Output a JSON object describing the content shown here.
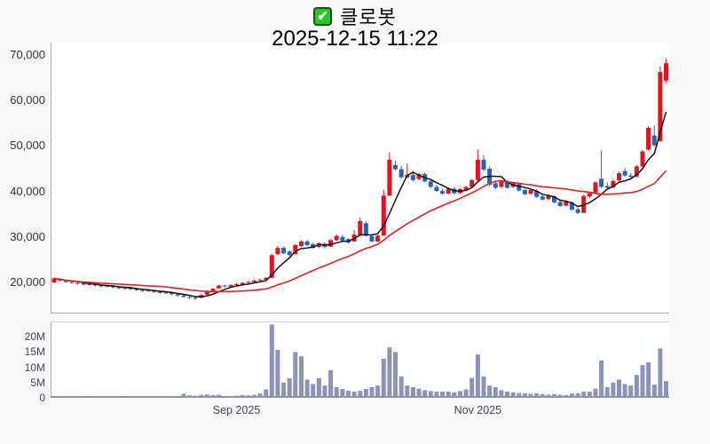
{
  "title": {
    "check_glyph": "✔",
    "symbol": "클로봇",
    "datetime": "2025-12-15 11:22"
  },
  "price_axis": {
    "ticks": [
      {
        "label": "70,000",
        "value": 70000
      },
      {
        "label": "60,000",
        "value": 60000
      },
      {
        "label": "50,000",
        "value": 50000
      },
      {
        "label": "40,000",
        "value": 40000
      },
      {
        "label": "30,000",
        "value": 30000
      },
      {
        "label": "20,000",
        "value": 20000
      }
    ]
  },
  "volume_axis": {
    "ticks": [
      {
        "label": "20M",
        "value": 20
      },
      {
        "label": "15M",
        "value": 15
      },
      {
        "label": "10M",
        "value": 10
      },
      {
        "label": "5M",
        "value": 5
      },
      {
        "label": "0",
        "value": 0
      }
    ]
  },
  "x_axis": {
    "labels": [
      {
        "label": "Sep 2025",
        "day_index": 31
      },
      {
        "label": "Nov 2025",
        "day_index": 72
      }
    ]
  },
  "chart_data": {
    "type": "candlestick",
    "symbol": "클로봇",
    "as_of": "2025-12-15 11:22",
    "price_axis_range": [
      13000,
      72500
    ],
    "volume_axis_range_millions": [
      0,
      25
    ],
    "grid": false,
    "colors": {
      "up": "#dd1522",
      "down": "#2b62b8",
      "volume": "#8b94b8",
      "ma_short": "#000000",
      "ma_long": "#e51f1f"
    },
    "ma_lines": [
      {
        "name": "ma-short",
        "window": 5,
        "color_key": "ma_short",
        "width": 1.4
      },
      {
        "name": "ma-long",
        "window": 20,
        "color_key": "ma_long",
        "width": 1.6
      }
    ],
    "candles_format": [
      "open",
      "high",
      "low",
      "close",
      "volume_millions"
    ],
    "candles": [
      [
        20000,
        21100,
        19800,
        20900,
        0.5
      ],
      [
        20800,
        21000,
        20200,
        20400,
        0.4
      ],
      [
        20400,
        20600,
        19900,
        20100,
        0.3
      ],
      [
        20100,
        20300,
        19700,
        19900,
        0.3
      ],
      [
        19900,
        20100,
        19500,
        19700,
        0.3
      ],
      [
        19800,
        19900,
        19300,
        19500,
        0.4
      ],
      [
        19500,
        19800,
        19300,
        19600,
        0.3
      ],
      [
        19600,
        19700,
        19100,
        19300,
        0.3
      ],
      [
        19300,
        19500,
        18900,
        19100,
        0.4
      ],
      [
        19100,
        19400,
        19000,
        19200,
        0.3
      ],
      [
        19200,
        19300,
        18700,
        18900,
        0.4
      ],
      [
        18900,
        19000,
        18500,
        18700,
        0.3
      ],
      [
        18700,
        18900,
        18500,
        18800,
        0.3
      ],
      [
        18800,
        18900,
        18300,
        18500,
        0.4
      ],
      [
        18500,
        18600,
        18100,
        18300,
        0.3
      ],
      [
        18300,
        18500,
        17900,
        18100,
        0.5
      ],
      [
        18100,
        18400,
        18000,
        18200,
        0.3
      ],
      [
        18200,
        18300,
        17700,
        17900,
        0.4
      ],
      [
        17900,
        18000,
        17500,
        17700,
        0.4
      ],
      [
        17700,
        17900,
        17500,
        17800,
        0.3
      ],
      [
        17800,
        17900,
        17200,
        17400,
        0.5
      ],
      [
        17400,
        17600,
        16900,
        17100,
        0.6
      ],
      [
        17100,
        17300,
        16600,
        16800,
        1.3
      ],
      [
        16800,
        17000,
        16400,
        16600,
        0.8
      ],
      [
        16600,
        16800,
        16200,
        16500,
        0.7
      ],
      [
        16600,
        17400,
        16500,
        17200,
        1.0
      ],
      [
        17300,
        18300,
        17200,
        18100,
        1.1
      ],
      [
        18100,
        18800,
        17900,
        18600,
        0.9
      ],
      [
        18700,
        19500,
        18600,
        19300,
        1.0
      ],
      [
        19300,
        19500,
        18900,
        19100,
        0.6
      ],
      [
        19100,
        19600,
        19000,
        19400,
        0.6
      ],
      [
        19400,
        19800,
        19300,
        19600,
        0.7
      ],
      [
        19600,
        20100,
        19500,
        19900,
        0.9
      ],
      [
        19900,
        20300,
        19800,
        20100,
        0.8
      ],
      [
        20100,
        20600,
        20000,
        20400,
        1.0
      ],
      [
        20400,
        20800,
        20200,
        20600,
        1.4
      ],
      [
        20600,
        21200,
        20500,
        21000,
        2.8
      ],
      [
        21000,
        26300,
        20900,
        26000,
        24.0
      ],
      [
        26200,
        28000,
        26000,
        27600,
        15.7
      ],
      [
        27600,
        27900,
        26200,
        26400,
        5.0
      ],
      [
        26800,
        27100,
        25800,
        26000,
        6.4
      ],
      [
        26200,
        28400,
        26100,
        28200,
        15.0
      ],
      [
        28000,
        29300,
        27800,
        29000,
        13.6
      ],
      [
        29000,
        29400,
        28000,
        28200,
        6.0
      ],
      [
        28400,
        28700,
        27400,
        27600,
        4.5
      ],
      [
        27800,
        28800,
        27600,
        28600,
        6.4
      ],
      [
        28500,
        28800,
        27500,
        27800,
        4.0
      ],
      [
        27900,
        29500,
        27800,
        29300,
        9.0
      ],
      [
        29300,
        30500,
        29100,
        30200,
        3.5
      ],
      [
        30000,
        30400,
        29000,
        29200,
        2.9
      ],
      [
        29500,
        29700,
        28600,
        28800,
        2.3
      ],
      [
        29000,
        31500,
        28900,
        30500,
        2.0
      ],
      [
        30500,
        34300,
        30200,
        33500,
        2.3
      ],
      [
        33000,
        33400,
        30100,
        30300,
        2.9
      ],
      [
        30200,
        30600,
        28800,
        29000,
        3.5
      ],
      [
        29000,
        30500,
        28900,
        30300,
        4.0
      ],
      [
        30300,
        40400,
        30200,
        39100,
        12.8
      ],
      [
        39100,
        48600,
        38900,
        47000,
        16.5
      ],
      [
        45800,
        46800,
        44600,
        44900,
        15.0
      ],
      [
        44900,
        45600,
        42800,
        43100,
        7.0
      ],
      [
        43100,
        46200,
        42900,
        43600,
        4.0
      ],
      [
        43600,
        44600,
        42200,
        42500,
        3.5
      ],
      [
        42700,
        44000,
        42500,
        43800,
        3.0
      ],
      [
        43800,
        44100,
        42000,
        42200,
        2.5
      ],
      [
        42200,
        42600,
        40800,
        41000,
        2.2
      ],
      [
        41000,
        41500,
        39900,
        40100,
        2.0
      ],
      [
        40100,
        40600,
        39300,
        39500,
        2.0
      ],
      [
        39500,
        40900,
        39400,
        40600,
        2.0
      ],
      [
        40600,
        40900,
        39400,
        39600,
        1.8
      ],
      [
        39700,
        40700,
        39500,
        40500,
        2.2
      ],
      [
        40300,
        41200,
        40100,
        41000,
        2.8
      ],
      [
        41000,
        42700,
        40900,
        42500,
        6.5
      ],
      [
        42500,
        49200,
        42300,
        47000,
        14.2
      ],
      [
        47000,
        48000,
        44500,
        44800,
        7.0
      ],
      [
        45000,
        45500,
        41200,
        41500,
        4.0
      ],
      [
        41800,
        42300,
        40500,
        40800,
        3.5
      ],
      [
        41000,
        42500,
        40800,
        42200,
        2.5
      ],
      [
        42100,
        42400,
        40600,
        40800,
        2.0
      ],
      [
        41000,
        42000,
        40800,
        41800,
        1.8
      ],
      [
        41600,
        41900,
        40000,
        40200,
        1.6
      ],
      [
        40300,
        40600,
        39200,
        39400,
        1.5
      ],
      [
        39500,
        40500,
        39300,
        40300,
        1.3
      ],
      [
        40100,
        40400,
        38600,
        38800,
        1.5
      ],
      [
        38900,
        39200,
        38000,
        38200,
        1.2
      ],
      [
        38300,
        39200,
        38100,
        39000,
        1.0
      ],
      [
        38900,
        39100,
        37400,
        37600,
        1.2
      ],
      [
        37700,
        38000,
        36600,
        36800,
        1.0
      ],
      [
        36900,
        38000,
        36700,
        37800,
        0.9
      ],
      [
        37600,
        37800,
        35800,
        36000,
        1.4
      ],
      [
        36100,
        36500,
        35100,
        35300,
        1.5
      ],
      [
        35300,
        39300,
        35200,
        39000,
        2.0
      ],
      [
        38900,
        40000,
        38500,
        39600,
        2.0
      ],
      [
        39600,
        42200,
        39400,
        42000,
        3.0
      ],
      [
        42800,
        49000,
        40800,
        41000,
        12.2
      ],
      [
        41200,
        42000,
        40500,
        40800,
        3.5
      ],
      [
        40900,
        42600,
        40700,
        42300,
        5.0
      ],
      [
        42400,
        44300,
        42200,
        44000,
        6.0
      ],
      [
        44500,
        45200,
        43300,
        43500,
        4.5
      ],
      [
        43500,
        44000,
        42900,
        43200,
        4.0
      ],
      [
        43300,
        45800,
        43100,
        45500,
        7.5
      ],
      [
        45500,
        49100,
        45300,
        48800,
        10.7
      ],
      [
        49200,
        54300,
        49000,
        54000,
        11.6
      ],
      [
        52300,
        54500,
        49800,
        50200,
        4.3
      ],
      [
        51100,
        67500,
        50800,
        66300,
        16.2
      ],
      [
        64400,
        69200,
        63800,
        68200,
        5.5
      ]
    ]
  }
}
